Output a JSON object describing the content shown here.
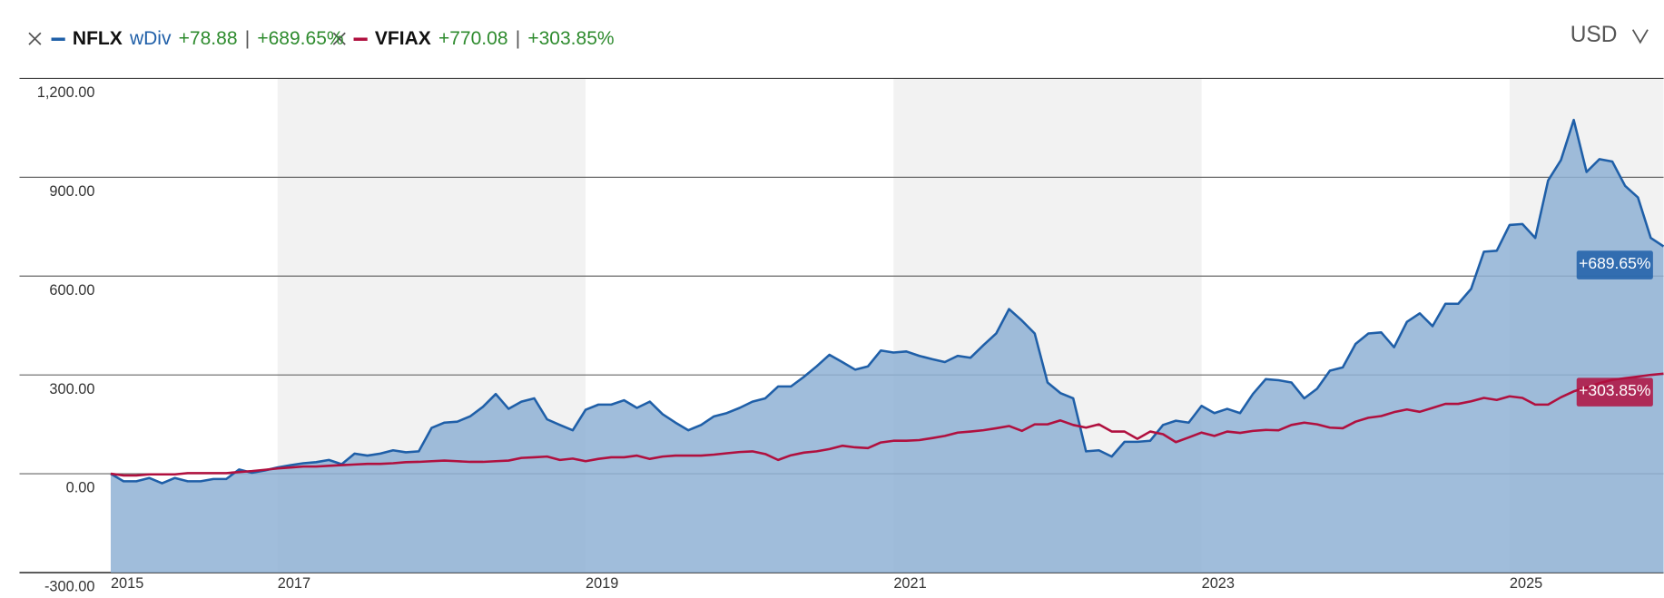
{
  "chart_data": {
    "type": "line",
    "currency": "USD",
    "separator": "|",
    "categories": [
      "2015",
      null,
      null,
      null,
      null,
      null,
      null,
      null,
      null,
      null,
      null,
      null,
      null,
      "2017",
      null,
      null,
      null,
      null,
      null,
      null,
      null,
      null,
      null,
      null,
      null,
      null,
      null,
      null,
      null,
      null,
      null,
      null,
      null,
      null,
      null,
      null,
      null,
      "2019",
      null,
      null,
      null,
      null,
      null,
      null,
      null,
      null,
      null,
      null,
      null,
      null,
      null,
      null,
      null,
      null,
      null,
      null,
      null,
      null,
      null,
      null,
      null,
      "2021",
      null,
      null,
      null,
      null,
      null,
      null,
      null,
      null,
      null,
      null,
      null,
      null,
      null,
      null,
      null,
      null,
      null,
      null,
      null,
      null,
      null,
      null,
      null,
      "2023",
      null,
      null,
      null,
      null,
      null,
      null,
      null,
      null,
      null,
      null,
      null,
      null,
      null,
      null,
      null,
      null,
      null,
      null,
      null,
      null,
      null,
      null,
      null,
      "2025",
      null,
      null,
      null,
      null,
      null,
      null,
      null,
      null,
      null,
      null,
      null,
      null
    ],
    "series": [
      {
        "name": "NFLX",
        "tag": "wDiv",
        "change": "+78.88",
        "return": "+689.65%",
        "color": "#1f5fa8",
        "fill": "#8fb1d5",
        "values": [
          0,
          -23,
          -23,
          -13,
          -29,
          -13,
          -23,
          -23,
          -16,
          -16,
          13,
          3,
          10,
          19,
          26,
          32,
          35,
          42,
          29,
          61,
          55,
          61,
          71,
          65,
          68,
          139,
          155,
          158,
          174,
          203,
          242,
          197,
          219,
          229,
          165,
          148,
          132,
          194,
          210,
          210,
          223,
          200,
          219,
          181,
          155,
          132,
          148,
          174,
          184,
          200,
          219,
          229,
          265,
          265,
          294,
          326,
          361,
          339,
          316,
          326,
          374,
          368,
          371,
          358,
          348,
          339,
          358,
          352,
          390,
          426,
          500,
          465,
          426,
          277,
          245,
          229,
          68,
          71,
          52,
          97,
          97,
          100,
          148,
          161,
          155,
          206,
          184,
          197,
          184,
          242,
          287,
          284,
          277,
          229,
          258,
          313,
          323,
          394,
          426,
          429,
          384,
          461,
          487,
          448,
          516,
          516,
          561,
          674,
          677,
          755,
          758,
          716,
          890,
          952,
          1074,
          916,
          955,
          948,
          874,
          839,
          716,
          690
        ]
      },
      {
        "name": "VFIAX",
        "change": "+770.08",
        "return": "+303.85%",
        "color": "#b0103f",
        "values": [
          0,
          -5,
          -5,
          -2,
          -2,
          -2,
          2,
          2,
          2,
          2,
          5,
          8,
          12,
          16,
          19,
          22,
          22,
          24,
          26,
          28,
          30,
          30,
          32,
          35,
          36,
          38,
          40,
          38,
          36,
          36,
          38,
          40,
          48,
          50,
          52,
          42,
          46,
          38,
          45,
          50,
          50,
          55,
          45,
          52,
          55,
          55,
          55,
          58,
          62,
          66,
          68,
          60,
          42,
          56,
          64,
          68,
          75,
          85,
          80,
          78,
          95,
          100,
          100,
          102,
          108,
          115,
          125,
          128,
          132,
          138,
          145,
          130,
          150,
          150,
          162,
          148,
          140,
          150,
          128,
          128,
          106,
          128,
          120,
          96,
          110,
          125,
          115,
          128,
          124,
          130,
          133,
          132,
          148,
          155,
          150,
          140,
          138,
          158,
          170,
          175,
          187,
          195,
          188,
          200,
          212,
          212,
          220,
          230,
          224,
          235,
          230,
          210,
          210,
          232,
          250,
          262,
          275,
          285,
          290,
          295,
          300,
          304
        ]
      }
    ],
    "ylim": [
      -300,
      1200
    ],
    "yticks": [
      {
        "value": -300,
        "label": "-300.00"
      },
      {
        "value": 0,
        "label": "0.00"
      },
      {
        "value": 300,
        "label": "300.00"
      },
      {
        "value": 600,
        "label": "600.00"
      },
      {
        "value": 900,
        "label": "900.00"
      },
      {
        "value": 1200,
        "label": "1,200.00"
      }
    ],
    "grid": true
  }
}
